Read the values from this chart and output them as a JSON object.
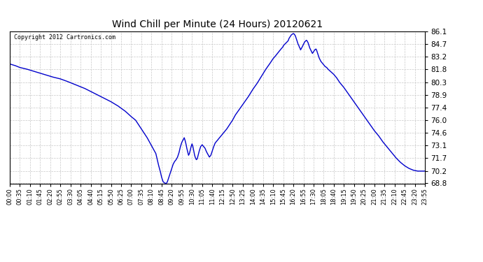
{
  "title": "Wind Chill per Minute (24 Hours) 20120621",
  "copyright_text": "Copyright 2012 Cartronics.com",
  "line_color": "#0000cc",
  "background_color": "#ffffff",
  "grid_color": "#c8c8c8",
  "ylim": [
    68.8,
    86.1
  ],
  "yticks": [
    68.8,
    70.2,
    71.7,
    73.1,
    74.6,
    76.0,
    77.4,
    78.9,
    80.3,
    81.8,
    83.2,
    84.7,
    86.1
  ],
  "xtick_labels": [
    "00:00",
    "00:35",
    "01:10",
    "01:45",
    "02:20",
    "02:55",
    "03:30",
    "04:05",
    "04:40",
    "05:15",
    "05:50",
    "06:25",
    "07:00",
    "07:35",
    "08:10",
    "08:45",
    "09:20",
    "09:55",
    "10:30",
    "11:05",
    "11:40",
    "12:15",
    "12:50",
    "13:25",
    "14:00",
    "14:35",
    "15:10",
    "15:45",
    "16:20",
    "16:55",
    "17:30",
    "18:05",
    "18:40",
    "19:15",
    "19:50",
    "20:25",
    "21:00",
    "21:35",
    "22:10",
    "22:45",
    "23:20",
    "23:55"
  ],
  "data_points": [
    [
      0,
      82.4
    ],
    [
      20,
      82.2
    ],
    [
      35,
      82.0
    ],
    [
      60,
      81.8
    ],
    [
      90,
      81.5
    ],
    [
      120,
      81.2
    ],
    [
      150,
      80.9
    ],
    [
      175,
      80.7
    ],
    [
      200,
      80.4
    ],
    [
      230,
      80.0
    ],
    [
      260,
      79.6
    ],
    [
      290,
      79.1
    ],
    [
      320,
      78.6
    ],
    [
      350,
      78.1
    ],
    [
      375,
      77.6
    ],
    [
      400,
      77.0
    ],
    [
      420,
      76.4
    ],
    [
      435,
      76.0
    ],
    [
      445,
      75.5
    ],
    [
      455,
      75.0
    ],
    [
      465,
      74.5
    ],
    [
      475,
      74.0
    ],
    [
      485,
      73.4
    ],
    [
      495,
      72.8
    ],
    [
      505,
      72.2
    ],
    [
      510,
      71.5
    ],
    [
      515,
      70.8
    ],
    [
      520,
      70.2
    ],
    [
      525,
      69.5
    ],
    [
      530,
      69.0
    ],
    [
      535,
      68.85
    ],
    [
      540,
      68.8
    ],
    [
      542,
      68.82
    ],
    [
      545,
      69.0
    ],
    [
      550,
      69.5
    ],
    [
      555,
      70.0
    ],
    [
      560,
      70.5
    ],
    [
      565,
      71.0
    ],
    [
      570,
      71.3
    ],
    [
      575,
      71.5
    ],
    [
      580,
      71.8
    ],
    [
      585,
      72.3
    ],
    [
      590,
      73.0
    ],
    [
      595,
      73.5
    ],
    [
      600,
      73.8
    ],
    [
      603,
      74.0
    ],
    [
      606,
      73.7
    ],
    [
      609,
      73.3
    ],
    [
      612,
      72.8
    ],
    [
      615,
      72.4
    ],
    [
      618,
      72.0
    ],
    [
      621,
      72.2
    ],
    [
      624,
      72.6
    ],
    [
      627,
      73.0
    ],
    [
      630,
      73.3
    ],
    [
      633,
      73.0
    ],
    [
      636,
      72.5
    ],
    [
      639,
      72.0
    ],
    [
      642,
      71.7
    ],
    [
      645,
      71.5
    ],
    [
      648,
      71.6
    ],
    [
      651,
      72.0
    ],
    [
      655,
      72.5
    ],
    [
      660,
      73.0
    ],
    [
      665,
      73.2
    ],
    [
      670,
      73.0
    ],
    [
      675,
      72.8
    ],
    [
      680,
      72.4
    ],
    [
      685,
      72.1
    ],
    [
      690,
      71.8
    ],
    [
      695,
      72.0
    ],
    [
      700,
      72.5
    ],
    [
      705,
      73.0
    ],
    [
      710,
      73.4
    ],
    [
      720,
      73.8
    ],
    [
      730,
      74.2
    ],
    [
      740,
      74.6
    ],
    [
      750,
      75.0
    ],
    [
      760,
      75.5
    ],
    [
      770,
      76.0
    ],
    [
      780,
      76.6
    ],
    [
      795,
      77.3
    ],
    [
      810,
      78.0
    ],
    [
      825,
      78.7
    ],
    [
      840,
      79.5
    ],
    [
      855,
      80.2
    ],
    [
      870,
      81.0
    ],
    [
      885,
      81.8
    ],
    [
      900,
      82.5
    ],
    [
      910,
      83.0
    ],
    [
      918,
      83.3
    ],
    [
      925,
      83.6
    ],
    [
      930,
      83.8
    ],
    [
      935,
      84.0
    ],
    [
      940,
      84.2
    ],
    [
      943,
      84.3
    ],
    [
      946,
      84.5
    ],
    [
      949,
      84.6
    ],
    [
      952,
      84.7
    ],
    [
      955,
      84.8
    ],
    [
      958,
      84.9
    ],
    [
      961,
      85.0
    ],
    [
      963,
      85.1
    ],
    [
      965,
      85.3
    ],
    [
      967,
      85.4
    ],
    [
      969,
      85.5
    ],
    [
      971,
      85.6
    ],
    [
      973,
      85.7
    ],
    [
      975,
      85.75
    ],
    [
      977,
      85.8
    ],
    [
      979,
      85.85
    ],
    [
      981,
      85.85
    ],
    [
      983,
      85.8
    ],
    [
      985,
      85.7
    ],
    [
      987,
      85.6
    ],
    [
      989,
      85.4
    ],
    [
      991,
      85.2
    ],
    [
      993,
      85.0
    ],
    [
      995,
      84.8
    ],
    [
      997,
      84.6
    ],
    [
      999,
      84.5
    ],
    [
      1001,
      84.3
    ],
    [
      1003,
      84.2
    ],
    [
      1005,
      84.0
    ],
    [
      1010,
      84.3
    ],
    [
      1013,
      84.5
    ],
    [
      1016,
      84.7
    ],
    [
      1019,
      84.9
    ],
    [
      1022,
      85.0
    ],
    [
      1025,
      85.1
    ],
    [
      1028,
      85.0
    ],
    [
      1031,
      84.8
    ],
    [
      1034,
      84.5
    ],
    [
      1037,
      84.2
    ],
    [
      1040,
      84.0
    ],
    [
      1043,
      83.8
    ],
    [
      1046,
      83.6
    ],
    [
      1050,
      83.8
    ],
    [
      1054,
      84.0
    ],
    [
      1058,
      84.1
    ],
    [
      1060,
      84.0
    ],
    [
      1063,
      83.7
    ],
    [
      1066,
      83.4
    ],
    [
      1069,
      83.1
    ],
    [
      1072,
      82.9
    ],
    [
      1075,
      82.7
    ],
    [
      1080,
      82.5
    ],
    [
      1085,
      82.3
    ],
    [
      1090,
      82.1
    ],
    [
      1095,
      82.0
    ],
    [
      1100,
      81.8
    ],
    [
      1110,
      81.5
    ],
    [
      1120,
      81.2
    ],
    [
      1130,
      80.8
    ],
    [
      1140,
      80.3
    ],
    [
      1155,
      79.7
    ],
    [
      1170,
      79.0
    ],
    [
      1185,
      78.3
    ],
    [
      1200,
      77.6
    ],
    [
      1215,
      76.9
    ],
    [
      1230,
      76.2
    ],
    [
      1245,
      75.5
    ],
    [
      1260,
      74.8
    ],
    [
      1275,
      74.2
    ],
    [
      1290,
      73.5
    ],
    [
      1305,
      72.9
    ],
    [
      1320,
      72.3
    ],
    [
      1335,
      71.7
    ],
    [
      1350,
      71.2
    ],
    [
      1365,
      70.8
    ],
    [
      1380,
      70.5
    ],
    [
      1395,
      70.3
    ],
    [
      1410,
      70.2
    ],
    [
      1435,
      70.2
    ]
  ]
}
